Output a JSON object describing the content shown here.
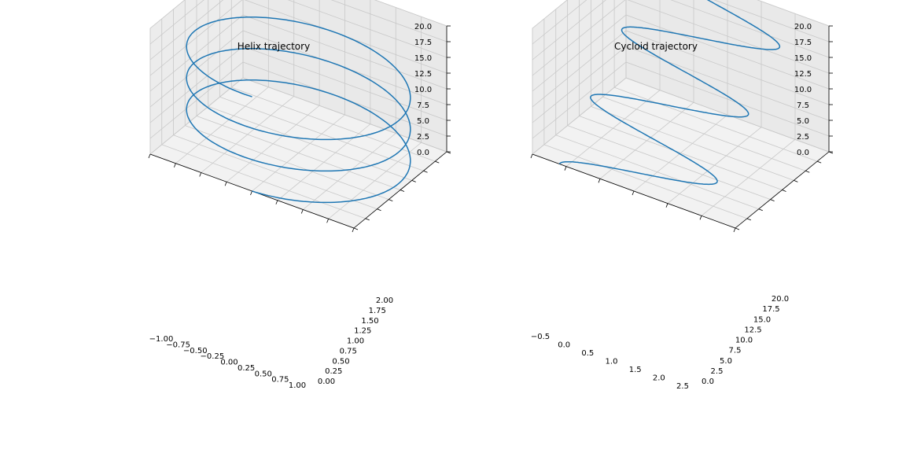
{
  "chart_data": [
    {
      "type": "line3d",
      "title": "Helix trajectory",
      "series_color": "#1f77b4",
      "pane_color": "#f2f2f2",
      "grid": true,
      "xlim": [
        -1.0,
        1.0
      ],
      "ylim": [
        0.0,
        2.0
      ],
      "zlim": [
        0.0,
        20.0
      ],
      "x_ticks": [
        "−1.00",
        "−0.75",
        "−0.50",
        "−0.25",
        "0.00",
        "0.25",
        "0.50",
        "0.75",
        "1.00"
      ],
      "y_ticks": [
        "0.00",
        "0.25",
        "0.50",
        "0.75",
        "1.00",
        "1.25",
        "1.50",
        "1.75",
        "2.00"
      ],
      "z_ticks": [
        "0.0",
        "2.5",
        "5.0",
        "7.5",
        "10.0",
        "12.5",
        "15.0",
        "17.5",
        "20.0"
      ],
      "curve": {
        "kind": "helix",
        "radius": 1.0,
        "y_center": 1.0,
        "z_start": 0.0,
        "z_end": 15.0,
        "turns": 3
      }
    },
    {
      "type": "line3d",
      "title": "Cycloid trajectory",
      "series_color": "#1f77b4",
      "pane_color": "#f2f2f2",
      "grid": true,
      "xlim": [
        -0.5,
        2.5
      ],
      "ylim": [
        0.0,
        20.0
      ],
      "zlim": [
        0.0,
        20.0
      ],
      "x_ticks": [
        "−0.5",
        "0.0",
        "0.5",
        "1.0",
        "1.5",
        "2.0",
        "2.5"
      ],
      "y_ticks": [
        "0.0",
        "2.5",
        "5.0",
        "7.5",
        "10.0",
        "12.5",
        "15.0",
        "17.5",
        "20.0"
      ],
      "z_ticks": [
        "0.0",
        "2.5",
        "5.0",
        "7.5",
        "10.0",
        "12.5",
        "15.0",
        "17.5",
        "20.0"
      ],
      "curve": {
        "kind": "cycloid",
        "x_min": -0.1,
        "x_max": 2.0,
        "y_start": 0.0,
        "y_end": 20.0,
        "z_start": 0.0,
        "z_end": 20.0,
        "turns": 3
      }
    }
  ]
}
